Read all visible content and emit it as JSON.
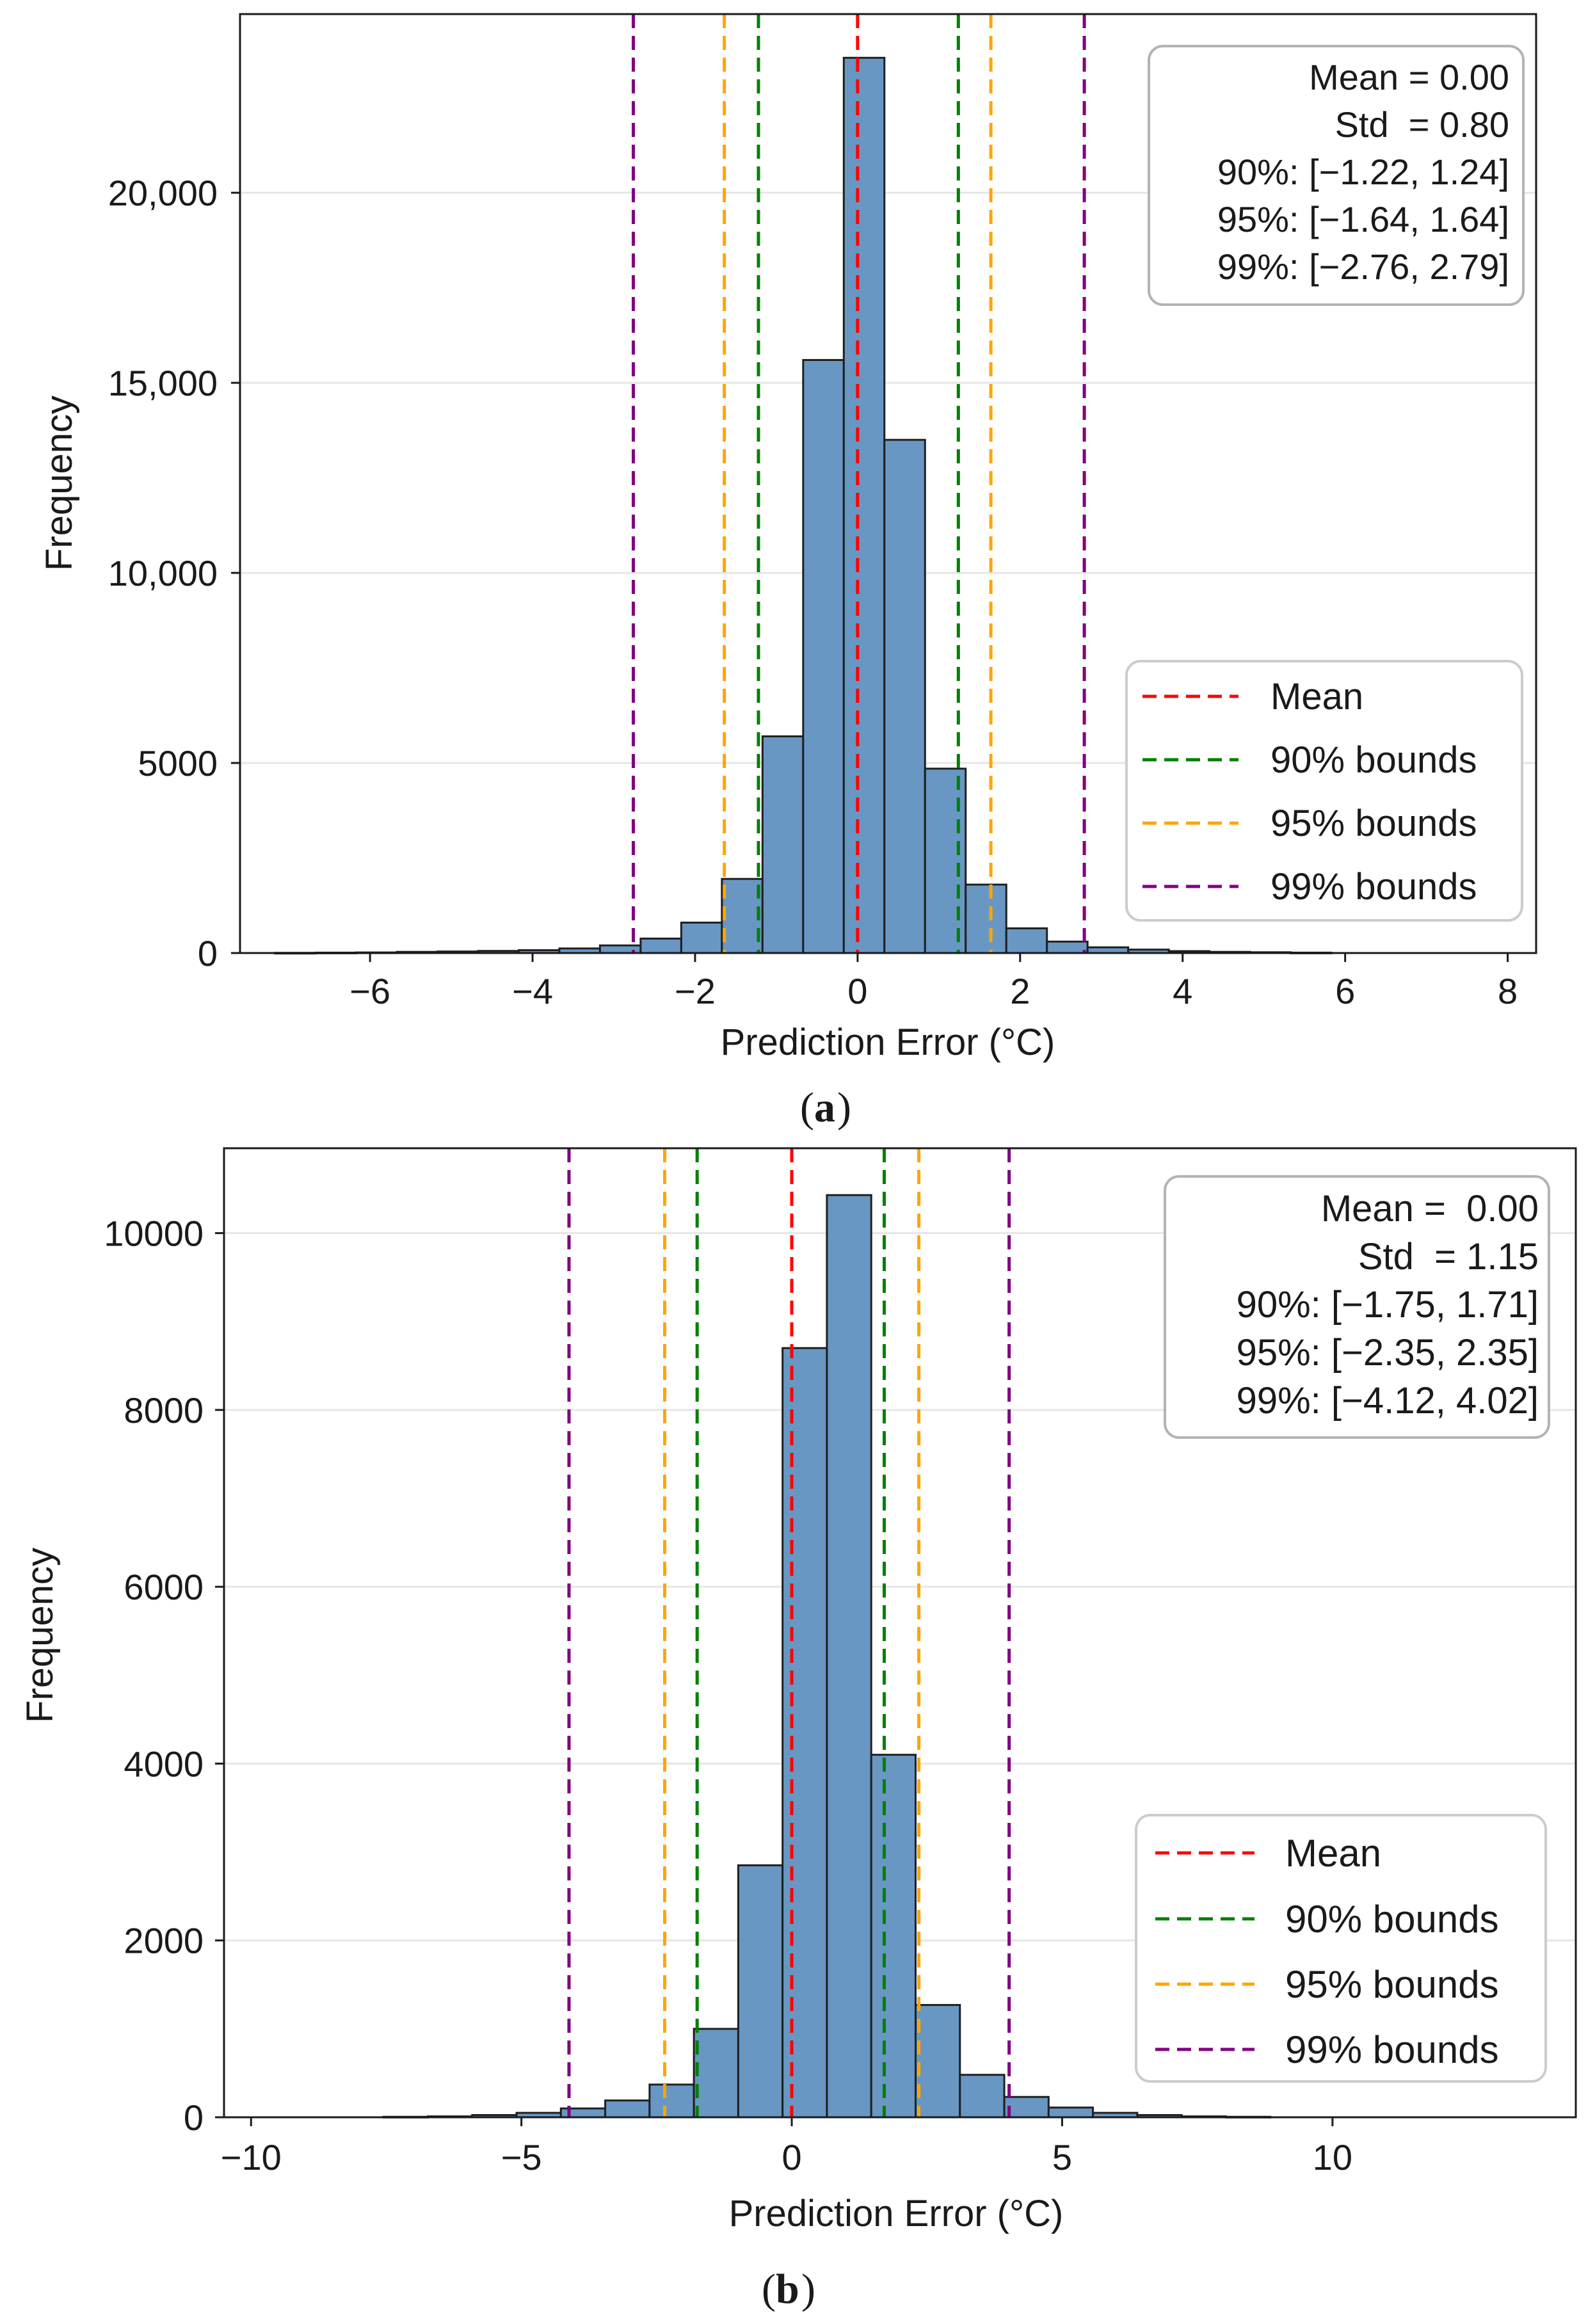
{
  "figure": {
    "panels": [
      {
        "caption_letter": "a",
        "stats_lines": [
          "Mean = 0.00",
          "Std  = 0.80",
          "90%: [−1.22, 1.24]",
          "95%: [−1.64, 1.64]",
          "99%: [−2.76, 2.79]"
        ],
        "legend": [
          "Mean",
          "90% bounds",
          "95% bounds",
          "99% bounds"
        ]
      },
      {
        "caption_letter": "b",
        "stats_lines": [
          "Mean =  0.00",
          "Std  = 1.15",
          "90%: [−1.75, 1.71]",
          "95%: [−2.35, 2.35]",
          "99%: [−4.12, 4.02]"
        ],
        "legend": [
          "Mean",
          "90% bounds",
          "95% bounds",
          "99% bounds"
        ]
      }
    ],
    "colors": {
      "bar_fill": "#6897c4",
      "bar_edge": "#1f1f1f",
      "mean": "#ff0000",
      "b90": "#008000",
      "b95": "#ffa500",
      "b99": "#800080",
      "grid": "#e6e6e6"
    }
  },
  "chart_data": [
    {
      "type": "bar",
      "xlabel": "Prediction Error (°C)",
      "ylabel": "Frequency",
      "xlim": [
        -7.6,
        8.35
      ],
      "ylim": [
        0,
        24700
      ],
      "xticks": [
        -6,
        -4,
        -2,
        0,
        2,
        4,
        6,
        8
      ],
      "xtick_labels": [
        "−6",
        "−4",
        "−2",
        "0",
        "2",
        "4",
        "6",
        "8"
      ],
      "yticks": [
        0,
        5000,
        10000,
        15000,
        20000
      ],
      "ytick_labels": [
        "0",
        "5000",
        "10,000",
        "15,000",
        "20,000"
      ],
      "grid": "horizontal",
      "legend_position": "lower right",
      "bins": [
        {
          "x0": -7.17,
          "x1": -6.67,
          "count": 5
        },
        {
          "x0": -6.67,
          "x1": -6.17,
          "count": 10
        },
        {
          "x0": -6.17,
          "x1": -5.67,
          "count": 15
        },
        {
          "x0": -5.67,
          "x1": -5.17,
          "count": 30
        },
        {
          "x0": -5.17,
          "x1": -4.67,
          "count": 40
        },
        {
          "x0": -4.67,
          "x1": -4.17,
          "count": 55
        },
        {
          "x0": -4.17,
          "x1": -3.67,
          "count": 75
        },
        {
          "x0": -3.67,
          "x1": -3.17,
          "count": 120
        },
        {
          "x0": -3.17,
          "x1": -2.67,
          "count": 200
        },
        {
          "x0": -2.67,
          "x1": -2.17,
          "count": 380
        },
        {
          "x0": -2.17,
          "x1": -1.67,
          "count": 800
        },
        {
          "x0": -1.67,
          "x1": -1.17,
          "count": 1950
        },
        {
          "x0": -1.17,
          "x1": -0.67,
          "count": 5700
        },
        {
          "x0": -0.67,
          "x1": -0.17,
          "count": 15600
        },
        {
          "x0": -0.17,
          "x1": 0.33,
          "count": 23550
        },
        {
          "x0": 0.33,
          "x1": 0.83,
          "count": 13500
        },
        {
          "x0": 0.83,
          "x1": 1.33,
          "count": 4850
        },
        {
          "x0": 1.33,
          "x1": 1.83,
          "count": 1800
        },
        {
          "x0": 1.83,
          "x1": 2.33,
          "count": 650
        },
        {
          "x0": 2.33,
          "x1": 2.83,
          "count": 300
        },
        {
          "x0": 2.83,
          "x1": 3.33,
          "count": 150
        },
        {
          "x0": 3.33,
          "x1": 3.83,
          "count": 90
        },
        {
          "x0": 3.83,
          "x1": 4.33,
          "count": 50
        },
        {
          "x0": 4.33,
          "x1": 4.83,
          "count": 30
        },
        {
          "x0": 4.83,
          "x1": 5.33,
          "count": 20
        },
        {
          "x0": 5.33,
          "x1": 5.83,
          "count": 10
        }
      ],
      "vlines": [
        {
          "key": "b99",
          "x": -2.76
        },
        {
          "key": "b95",
          "x": -1.64
        },
        {
          "key": "b90",
          "x": -1.22
        },
        {
          "key": "mean",
          "x": 0.0
        },
        {
          "key": "b90",
          "x": 1.24
        },
        {
          "key": "b95",
          "x": 1.64
        },
        {
          "key": "b99",
          "x": 2.79
        }
      ]
    },
    {
      "type": "bar",
      "xlabel": "Prediction Error (°C)",
      "ylabel": "Frequency",
      "xlim": [
        -10.5,
        14.5
      ],
      "ylim": [
        0,
        10960
      ],
      "xticks": [
        -10,
        -5,
        0,
        5,
        10
      ],
      "xtick_labels": [
        "−10",
        "−5",
        "0",
        "5",
        "10"
      ],
      "yticks": [
        0,
        2000,
        4000,
        6000,
        8000,
        10000
      ],
      "ytick_labels": [
        "0",
        "2000",
        "4000",
        "6000",
        "8000",
        "10000"
      ],
      "grid": "horizontal",
      "legend_position": "lower right",
      "bins": [
        {
          "x0": -7.55,
          "x1": -6.73,
          "count": 5
        },
        {
          "x0": -6.73,
          "x1": -5.91,
          "count": 10
        },
        {
          "x0": -5.91,
          "x1": -5.09,
          "count": 25
        },
        {
          "x0": -5.09,
          "x1": -4.27,
          "count": 50
        },
        {
          "x0": -4.27,
          "x1": -3.45,
          "count": 100
        },
        {
          "x0": -3.45,
          "x1": -2.63,
          "count": 190
        },
        {
          "x0": -2.63,
          "x1": -1.81,
          "count": 370
        },
        {
          "x0": -1.81,
          "x1": -0.99,
          "count": 1000
        },
        {
          "x0": -0.99,
          "x1": -0.17,
          "count": 2850
        },
        {
          "x0": -0.17,
          "x1": 0.65,
          "count": 8700
        },
        {
          "x0": 0.65,
          "x1": 1.47,
          "count": 10430
        },
        {
          "x0": 1.47,
          "x1": 2.29,
          "count": 4100
        },
        {
          "x0": 2.29,
          "x1": 3.11,
          "count": 1270
        },
        {
          "x0": 3.11,
          "x1": 3.93,
          "count": 480
        },
        {
          "x0": 3.93,
          "x1": 4.75,
          "count": 230
        },
        {
          "x0": 4.75,
          "x1": 5.57,
          "count": 110
        },
        {
          "x0": 5.57,
          "x1": 6.39,
          "count": 50
        },
        {
          "x0": 6.39,
          "x1": 7.21,
          "count": 25
        },
        {
          "x0": 7.21,
          "x1": 8.03,
          "count": 10
        },
        {
          "x0": 8.03,
          "x1": 8.85,
          "count": 5
        }
      ],
      "vlines": [
        {
          "key": "b99",
          "x": -4.12
        },
        {
          "key": "b95",
          "x": -2.35
        },
        {
          "key": "b90",
          "x": -1.75
        },
        {
          "key": "mean",
          "x": 0.0
        },
        {
          "key": "b90",
          "x": 1.71
        },
        {
          "key": "b95",
          "x": 2.35
        },
        {
          "key": "b99",
          "x": 4.02
        }
      ]
    }
  ]
}
